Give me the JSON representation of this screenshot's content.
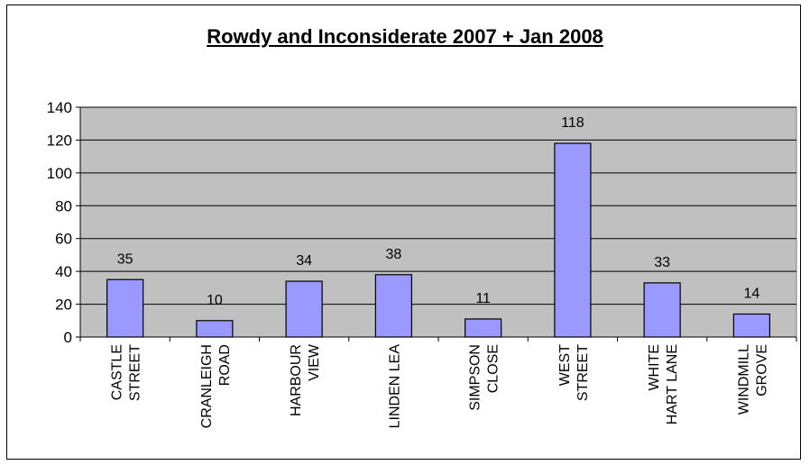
{
  "chart_data": {
    "type": "bar",
    "title": "Rowdy and Inconsiderate 2007 + Jan 2008",
    "xlabel": "",
    "ylabel": "",
    "categories": [
      [
        "CASTLE",
        "STREET"
      ],
      [
        "CRANLEIGH",
        "ROAD"
      ],
      [
        "HARBOUR",
        "VIEW"
      ],
      [
        "LINDEN LEA"
      ],
      [
        "SIMPSON",
        "CLOSE"
      ],
      [
        "WEST",
        "STREET"
      ],
      [
        "WHITE",
        "HART LANE"
      ],
      [
        "WINDMILL",
        "GROVE"
      ]
    ],
    "values": [
      35,
      10,
      34,
      38,
      11,
      118,
      33,
      14
    ],
    "data_labels": [
      "35",
      "10",
      "34",
      "38",
      "11",
      "118",
      "33",
      "14"
    ],
    "ylim": [
      0,
      140
    ],
    "yticks": [
      0,
      20,
      40,
      60,
      80,
      100,
      120,
      140
    ],
    "grid": true,
    "legend": "none",
    "colors": {
      "bar_fill": "#9999ff",
      "bar_stroke": "#000000",
      "plot_bg": "#c0c0c0",
      "gridline": "#000000"
    }
  }
}
